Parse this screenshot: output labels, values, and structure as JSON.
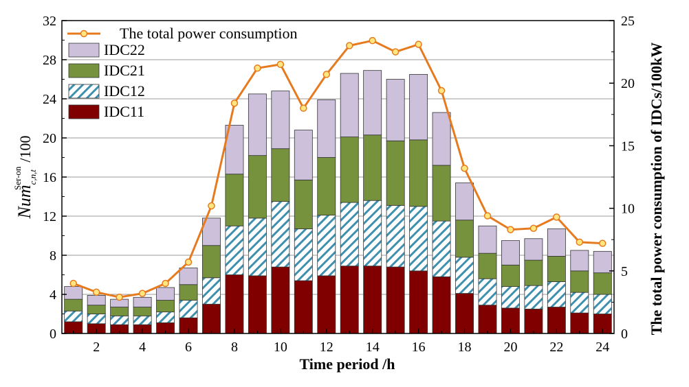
{
  "chart_data": {
    "type": "bar",
    "stacked": true,
    "categories": [
      "1",
      "2",
      "3",
      "4",
      "5",
      "6",
      "7",
      "8",
      "9",
      "10",
      "11",
      "12",
      "13",
      "14",
      "15",
      "16",
      "17",
      "18",
      "19",
      "20",
      "21",
      "22",
      "23",
      "24"
    ],
    "xticks": [
      "2",
      "4",
      "6",
      "8",
      "10",
      "12",
      "14",
      "16",
      "18",
      "20",
      "22",
      "24"
    ],
    "xlabel": "Time period /h",
    "ylabel_left": {
      "main": "Num",
      "sup": "Ser-on",
      "sub": "c,n,t",
      "suffix": "/100"
    },
    "ylabel_right": "The total power consumption of IDCs/100kW",
    "ylim_left": [
      0,
      32
    ],
    "yticks_left": [
      0,
      4,
      8,
      12,
      16,
      20,
      24,
      28,
      32
    ],
    "ylim_right": [
      0,
      25
    ],
    "yticks_right": [
      0,
      5,
      10,
      15,
      20,
      25
    ],
    "grid": true,
    "legend_position": "top-left",
    "series": [
      {
        "name": "IDC11",
        "color": "#800000",
        "pattern": "solid",
        "values": [
          1.2,
          1.0,
          0.9,
          0.9,
          1.1,
          1.6,
          3.0,
          6.0,
          5.9,
          6.8,
          5.4,
          5.9,
          6.9,
          6.9,
          6.8,
          6.4,
          5.8,
          4.1,
          2.9,
          2.6,
          2.5,
          2.7,
          2.1,
          2.0
        ]
      },
      {
        "name": "IDC12",
        "color": "#3f8fae",
        "pattern": "hatch",
        "values": [
          1.1,
          1.0,
          0.9,
          0.9,
          1.1,
          1.8,
          2.7,
          5.0,
          5.9,
          6.7,
          5.3,
          6.2,
          6.5,
          6.7,
          6.3,
          6.6,
          5.7,
          3.7,
          2.7,
          2.2,
          2.4,
          2.6,
          2.1,
          2.0
        ]
      },
      {
        "name": "IDC21",
        "color": "#76923c",
        "pattern": "solid",
        "values": [
          1.2,
          0.9,
          0.9,
          0.9,
          1.2,
          1.6,
          3.3,
          5.3,
          6.4,
          5.4,
          5.0,
          5.9,
          6.7,
          6.7,
          6.6,
          6.8,
          5.7,
          3.8,
          2.6,
          2.2,
          2.6,
          2.6,
          2.2,
          2.2
        ]
      },
      {
        "name": "IDC22",
        "color": "#ccc0da",
        "pattern": "solid",
        "values": [
          1.3,
          1.0,
          0.8,
          1.0,
          1.3,
          1.7,
          2.8,
          5.0,
          6.3,
          5.9,
          5.1,
          5.9,
          6.5,
          6.6,
          6.3,
          6.7,
          5.4,
          3.8,
          2.8,
          2.5,
          2.2,
          2.8,
          2.1,
          2.2
        ]
      }
    ],
    "line": {
      "name": "The total power consumption",
      "color": "#e67a1e",
      "marker_color": "#ffe680",
      "values": [
        4.0,
        3.3,
        2.9,
        3.2,
        4.0,
        5.7,
        10.2,
        18.4,
        21.2,
        21.5,
        18.0,
        20.7,
        23.0,
        23.4,
        22.5,
        23.1,
        19.4,
        13.2,
        9.4,
        8.3,
        8.4,
        9.3,
        7.3,
        7.2
      ]
    }
  }
}
